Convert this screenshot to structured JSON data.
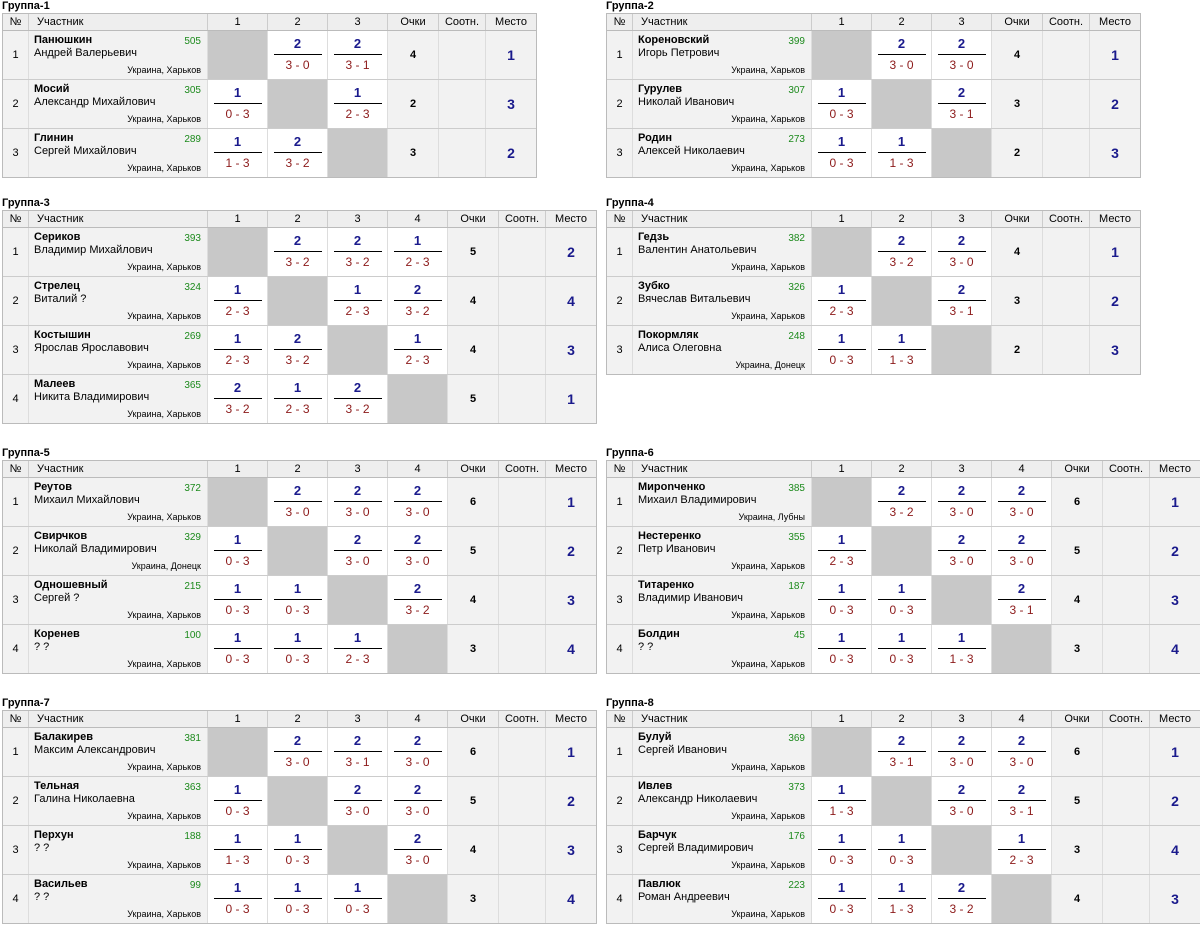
{
  "headers": {
    "no": "№",
    "name": "Участник",
    "points": "Очки",
    "ratio": "Соотн.",
    "place": "Место"
  },
  "groups": [
    {
      "title": "Группа-1",
      "players": [
        {
          "no": "1",
          "surname": "Панюшкин",
          "fname": "Андрей Валерьевич",
          "rating": "505",
          "city": "Украина, Харьков",
          "res": [
            null,
            {
              "w": "2",
              "s": "3 - 0"
            },
            {
              "w": "2",
              "s": "3 - 1"
            }
          ],
          "points": "4",
          "place": "1"
        },
        {
          "no": "2",
          "surname": "Мосий",
          "fname": "Александр Михайлович",
          "rating": "305",
          "city": "Украина, Харьков",
          "res": [
            {
              "w": "1",
              "s": "0 - 3"
            },
            null,
            {
              "w": "1",
              "s": "2 - 3"
            }
          ],
          "points": "2",
          "place": "3"
        },
        {
          "no": "3",
          "surname": "Глинин",
          "fname": "Сергей Михайлович",
          "rating": "289",
          "city": "Украина, Харьков",
          "res": [
            {
              "w": "1",
              "s": "1 - 3"
            },
            {
              "w": "2",
              "s": "3 - 2"
            },
            null
          ],
          "points": "3",
          "place": "2"
        }
      ]
    },
    {
      "title": "Группа-2",
      "players": [
        {
          "no": "1",
          "surname": "Кореновский",
          "fname": "Игорь Петрович",
          "rating": "399",
          "city": "Украина, Харьков",
          "res": [
            null,
            {
              "w": "2",
              "s": "3 - 0"
            },
            {
              "w": "2",
              "s": "3 - 0"
            }
          ],
          "points": "4",
          "place": "1"
        },
        {
          "no": "2",
          "surname": "Гурулев",
          "fname": "Николай Иванович",
          "rating": "307",
          "city": "Украина, Харьков",
          "res": [
            {
              "w": "1",
              "s": "0 - 3"
            },
            null,
            {
              "w": "2",
              "s": "3 - 1"
            }
          ],
          "points": "3",
          "place": "2"
        },
        {
          "no": "3",
          "surname": "Родин",
          "fname": "Алексей Николаевич",
          "rating": "273",
          "city": "Украина, Харьков",
          "res": [
            {
              "w": "1",
              "s": "0 - 3"
            },
            {
              "w": "1",
              "s": "1 - 3"
            },
            null
          ],
          "points": "2",
          "place": "3"
        }
      ]
    },
    {
      "title": "Группа-3",
      "players": [
        {
          "no": "1",
          "surname": "Сериков",
          "fname": "Владимир Михайлович",
          "rating": "393",
          "city": "Украина, Харьков",
          "res": [
            null,
            {
              "w": "2",
              "s": "3 - 2"
            },
            {
              "w": "2",
              "s": "3 - 2"
            },
            {
              "w": "1",
              "s": "2 - 3"
            }
          ],
          "points": "5",
          "place": "2"
        },
        {
          "no": "2",
          "surname": "Стрелец",
          "fname": "Виталий ?",
          "rating": "324",
          "city": "Украина, Харьков",
          "res": [
            {
              "w": "1",
              "s": "2 - 3"
            },
            null,
            {
              "w": "1",
              "s": "2 - 3"
            },
            {
              "w": "2",
              "s": "3 - 2"
            }
          ],
          "points": "4",
          "place": "4"
        },
        {
          "no": "3",
          "surname": "Костышин",
          "fname": "Ярослав Ярославович",
          "rating": "269",
          "city": "Украина, Харьков",
          "res": [
            {
              "w": "1",
              "s": "2 - 3"
            },
            {
              "w": "2",
              "s": "3 - 2"
            },
            null,
            {
              "w": "1",
              "s": "2 - 3"
            }
          ],
          "points": "4",
          "place": "3"
        },
        {
          "no": "4",
          "surname": "Малеев",
          "fname": "Никита Владимирович",
          "rating": "365",
          "city": "Украина, Харьков",
          "res": [
            {
              "w": "2",
              "s": "3 - 2"
            },
            {
              "w": "1",
              "s": "2 - 3"
            },
            {
              "w": "2",
              "s": "3 - 2"
            },
            null
          ],
          "points": "5",
          "place": "1"
        }
      ]
    },
    {
      "title": "Группа-4",
      "players": [
        {
          "no": "1",
          "surname": "Гедзь",
          "fname": "Валентин Анатольевич",
          "rating": "382",
          "city": "Украина, Харьков",
          "res": [
            null,
            {
              "w": "2",
              "s": "3 - 2"
            },
            {
              "w": "2",
              "s": "3 - 0"
            }
          ],
          "points": "4",
          "place": "1"
        },
        {
          "no": "2",
          "surname": "Зубко",
          "fname": "Вячеслав Витальевич",
          "rating": "326",
          "city": "Украина, Харьков",
          "res": [
            {
              "w": "1",
              "s": "2 - 3"
            },
            null,
            {
              "w": "2",
              "s": "3 - 1"
            }
          ],
          "points": "3",
          "place": "2"
        },
        {
          "no": "3",
          "surname": "Покормляк",
          "fname": "Алиса Олеговна",
          "rating": "248",
          "city": "Украина, Донецк",
          "res": [
            {
              "w": "1",
              "s": "0 - 3"
            },
            {
              "w": "1",
              "s": "1 - 3"
            },
            null
          ],
          "points": "2",
          "place": "3"
        }
      ]
    },
    {
      "title": "Группа-5",
      "players": [
        {
          "no": "1",
          "surname": "Реутов",
          "fname": "Михаил Михайлович",
          "rating": "372",
          "city": "Украина, Харьков",
          "res": [
            null,
            {
              "w": "2",
              "s": "3 - 0"
            },
            {
              "w": "2",
              "s": "3 - 0"
            },
            {
              "w": "2",
              "s": "3 - 0"
            }
          ],
          "points": "6",
          "place": "1"
        },
        {
          "no": "2",
          "surname": "Свирчков",
          "fname": "Николай Владимирович",
          "rating": "329",
          "city": "Украина, Донецк",
          "res": [
            {
              "w": "1",
              "s": "0 - 3"
            },
            null,
            {
              "w": "2",
              "s": "3 - 0"
            },
            {
              "w": "2",
              "s": "3 - 0"
            }
          ],
          "points": "5",
          "place": "2"
        },
        {
          "no": "3",
          "surname": "Одношевный",
          "fname": "Сергей ?",
          "rating": "215",
          "city": "Украина, Харьков",
          "res": [
            {
              "w": "1",
              "s": "0 - 3"
            },
            {
              "w": "1",
              "s": "0 - 3"
            },
            null,
            {
              "w": "2",
              "s": "3 - 2"
            }
          ],
          "points": "4",
          "place": "3"
        },
        {
          "no": "4",
          "surname": "Коренев",
          "fname": "? ?",
          "rating": "100",
          "city": "Украина, Харьков",
          "res": [
            {
              "w": "1",
              "s": "0 - 3"
            },
            {
              "w": "1",
              "s": "0 - 3"
            },
            {
              "w": "1",
              "s": "2 - 3"
            },
            null
          ],
          "points": "3",
          "place": "4"
        }
      ]
    },
    {
      "title": "Группа-6",
      "players": [
        {
          "no": "1",
          "surname": "Мирonченко",
          "fname": "Михаил Владимирович",
          "rating": "385",
          "city": "Украина, Лубны",
          "res": [
            null,
            {
              "w": "2",
              "s": "3 - 2"
            },
            {
              "w": "2",
              "s": "3 - 0"
            },
            {
              "w": "2",
              "s": "3 - 0"
            }
          ],
          "points": "6",
          "place": "1"
        },
        {
          "no": "2",
          "surname": "Нестеренко",
          "fname": "Петр Иванович",
          "rating": "355",
          "city": "Украина, Харьков",
          "res": [
            {
              "w": "1",
              "s": "2 - 3"
            },
            null,
            {
              "w": "2",
              "s": "3 - 0"
            },
            {
              "w": "2",
              "s": "3 - 0"
            }
          ],
          "points": "5",
          "place": "2"
        },
        {
          "no": "3",
          "surname": "Титаренко",
          "fname": "Владимир Иванович",
          "rating": "187",
          "city": "Украина, Харьков",
          "res": [
            {
              "w": "1",
              "s": "0 - 3"
            },
            {
              "w": "1",
              "s": "0 - 3"
            },
            null,
            {
              "w": "2",
              "s": "3 - 1"
            }
          ],
          "points": "4",
          "place": "3"
        },
        {
          "no": "4",
          "surname": "Болдин",
          "fname": "? ?",
          "rating": "45",
          "city": "Украина, Харьков",
          "res": [
            {
              "w": "1",
              "s": "0 - 3"
            },
            {
              "w": "1",
              "s": "0 - 3"
            },
            {
              "w": "1",
              "s": "1 - 3"
            },
            null
          ],
          "points": "3",
          "place": "4"
        }
      ]
    },
    {
      "title": "Группа-7",
      "players": [
        {
          "no": "1",
          "surname": "Балакирев",
          "fname": "Максим Александрович",
          "rating": "381",
          "city": "Украина, Харьков",
          "res": [
            null,
            {
              "w": "2",
              "s": "3 - 0"
            },
            {
              "w": "2",
              "s": "3 - 1"
            },
            {
              "w": "2",
              "s": "3 - 0"
            }
          ],
          "points": "6",
          "place": "1"
        },
        {
          "no": "2",
          "surname": "Тельная",
          "fname": "Галина Николаевна",
          "rating": "363",
          "city": "Украина, Харьков",
          "res": [
            {
              "w": "1",
              "s": "0 - 3"
            },
            null,
            {
              "w": "2",
              "s": "3 - 0"
            },
            {
              "w": "2",
              "s": "3 - 0"
            }
          ],
          "points": "5",
          "place": "2"
        },
        {
          "no": "3",
          "surname": "Перхун",
          "fname": "? ?",
          "rating": "188",
          "city": "Украина, Харьков",
          "res": [
            {
              "w": "1",
              "s": "1 - 3"
            },
            {
              "w": "1",
              "s": "0 - 3"
            },
            null,
            {
              "w": "2",
              "s": "3 - 0"
            }
          ],
          "points": "4",
          "place": "3"
        },
        {
          "no": "4",
          "surname": "Васильев",
          "fname": "? ?",
          "rating": "99",
          "city": "Украина, Харьков",
          "res": [
            {
              "w": "1",
              "s": "0 - 3"
            },
            {
              "w": "1",
              "s": "0 - 3"
            },
            {
              "w": "1",
              "s": "0 - 3"
            },
            null
          ],
          "points": "3",
          "place": "4"
        }
      ]
    },
    {
      "title": "Группа-8",
      "players": [
        {
          "no": "1",
          "surname": "Булуй",
          "fname": "Сергей Иванович",
          "rating": "369",
          "city": "Украина, Харьков",
          "res": [
            null,
            {
              "w": "2",
              "s": "3 - 1"
            },
            {
              "w": "2",
              "s": "3 - 0"
            },
            {
              "w": "2",
              "s": "3 - 0"
            }
          ],
          "points": "6",
          "place": "1"
        },
        {
          "no": "2",
          "surname": "Ивлев",
          "fname": "Александр Николаевич",
          "rating": "373",
          "city": "Украина, Харьков",
          "res": [
            {
              "w": "1",
              "s": "1 - 3"
            },
            null,
            {
              "w": "2",
              "s": "3 - 0"
            },
            {
              "w": "2",
              "s": "3 - 1"
            }
          ],
          "points": "5",
          "place": "2"
        },
        {
          "no": "3",
          "surname": "Барчук",
          "fname": "Сергей Владимирович",
          "rating": "176",
          "city": "Украина, Харьков",
          "res": [
            {
              "w": "1",
              "s": "0 - 3"
            },
            {
              "w": "1",
              "s": "0 - 3"
            },
            null,
            {
              "w": "1",
              "s": "2 - 3"
            }
          ],
          "points": "3",
          "place": "4"
        },
        {
          "no": "4",
          "surname": "Павлюк",
          "fname": "Роман Андреевич",
          "rating": "223",
          "city": "Украина, Харьков",
          "res": [
            {
              "w": "1",
              "s": "0 - 3"
            },
            {
              "w": "1",
              "s": "1 - 3"
            },
            {
              "w": "2",
              "s": "3 - 2"
            },
            null
          ],
          "points": "4",
          "place": "3"
        }
      ]
    }
  ]
}
